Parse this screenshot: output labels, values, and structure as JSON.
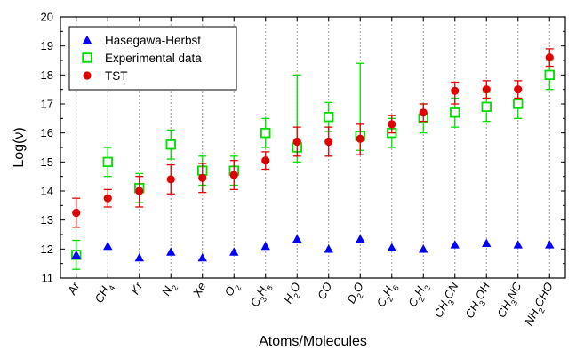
{
  "chart_data": {
    "type": "scatter",
    "xlabel": "Atoms/Molecules",
    "ylabel": "Log(ν)",
    "ylim": [
      11,
      20
    ],
    "yticks": [
      11,
      12,
      13,
      14,
      15,
      16,
      17,
      18,
      19,
      20
    ],
    "grid": "vertical dotted lines at each category",
    "legend_position": "top-left",
    "categories": [
      {
        "base": "Ar",
        "parts": [
          [
            "Ar",
            "n"
          ]
        ]
      },
      {
        "base": "CH4",
        "parts": [
          [
            "CH",
            "n"
          ],
          [
            "4",
            "sub"
          ]
        ]
      },
      {
        "base": "Kr",
        "parts": [
          [
            "Kr",
            "n"
          ]
        ]
      },
      {
        "base": "N2",
        "parts": [
          [
            "N",
            "n"
          ],
          [
            "2",
            "sub"
          ]
        ]
      },
      {
        "base": "Xe",
        "parts": [
          [
            "Xe",
            "n"
          ]
        ]
      },
      {
        "base": "O2",
        "parts": [
          [
            "O",
            "n"
          ],
          [
            "2",
            "sub"
          ]
        ]
      },
      {
        "base": "C3H8",
        "parts": [
          [
            "C",
            "n"
          ],
          [
            "3",
            "sub"
          ],
          [
            "H",
            "n"
          ],
          [
            "8",
            "sub"
          ]
        ]
      },
      {
        "base": "H2O",
        "parts": [
          [
            "H",
            "n"
          ],
          [
            "2",
            "sub"
          ],
          [
            "O",
            "n"
          ]
        ]
      },
      {
        "base": "CO",
        "parts": [
          [
            "CO",
            "n"
          ]
        ]
      },
      {
        "base": "D2O",
        "parts": [
          [
            "D",
            "n"
          ],
          [
            "2",
            "sub"
          ],
          [
            "O",
            "n"
          ]
        ]
      },
      {
        "base": "C2H6",
        "parts": [
          [
            "C",
            "n"
          ],
          [
            "2",
            "sub"
          ],
          [
            "H",
            "n"
          ],
          [
            "6",
            "sub"
          ]
        ]
      },
      {
        "base": "C2H2",
        "parts": [
          [
            "C",
            "n"
          ],
          [
            "2",
            "sub"
          ],
          [
            "H",
            "n"
          ],
          [
            "2",
            "sub"
          ]
        ]
      },
      {
        "base": "CH3CN",
        "parts": [
          [
            "CH",
            "n"
          ],
          [
            "3",
            "sub"
          ],
          [
            "CN",
            "n"
          ]
        ]
      },
      {
        "base": "CH3OH",
        "parts": [
          [
            "CH",
            "n"
          ],
          [
            "3",
            "sub"
          ],
          [
            "OH",
            "n"
          ]
        ]
      },
      {
        "base": "CH3NC",
        "parts": [
          [
            "CH",
            "n"
          ],
          [
            "3",
            "sub"
          ],
          [
            "NC",
            "n"
          ]
        ]
      },
      {
        "base": "NH2CHO",
        "parts": [
          [
            "NH",
            "n"
          ],
          [
            "2",
            "sub"
          ],
          [
            "CHO",
            "n"
          ]
        ]
      }
    ],
    "series": [
      {
        "name": "Hasegawa-Herbst",
        "marker": "triangle",
        "color": "#0000ff",
        "values": [
          11.8,
          12.1,
          11.7,
          11.9,
          11.7,
          11.9,
          12.1,
          12.35,
          12.0,
          12.35,
          12.05,
          12.0,
          12.15,
          12.2,
          12.15,
          12.15
        ]
      },
      {
        "name": "Experimental data",
        "marker": "open-square",
        "color": "#00dd00",
        "values": [
          11.8,
          15.0,
          14.1,
          15.6,
          14.7,
          14.7,
          16.0,
          15.5,
          16.55,
          15.9,
          16.0,
          16.5,
          16.7,
          16.9,
          17.0,
          18.0
        ],
        "err_low": [
          11.3,
          14.5,
          13.6,
          15.1,
          14.2,
          14.2,
          15.5,
          15.0,
          16.05,
          15.4,
          15.5,
          16.0,
          16.2,
          16.4,
          16.5,
          17.5
        ],
        "err_high": [
          12.3,
          15.5,
          14.6,
          16.1,
          15.2,
          15.2,
          16.5,
          18.0,
          17.05,
          18.4,
          16.5,
          17.0,
          17.2,
          17.4,
          17.5,
          18.5
        ]
      },
      {
        "name": "TST",
        "marker": "filled-circle",
        "color": "#e00000",
        "values": [
          13.25,
          13.75,
          14.0,
          14.4,
          14.45,
          14.55,
          15.05,
          15.7,
          15.7,
          15.8,
          16.3,
          16.7,
          17.45,
          17.5,
          17.5,
          18.6
        ],
        "err_low": [
          12.75,
          13.45,
          13.45,
          13.9,
          13.95,
          14.05,
          14.75,
          15.2,
          15.2,
          15.25,
          16.0,
          16.4,
          17.0,
          17.2,
          17.2,
          18.3
        ],
        "err_high": [
          13.75,
          14.05,
          14.5,
          14.9,
          14.95,
          15.05,
          15.35,
          16.2,
          16.2,
          16.3,
          16.6,
          17.0,
          17.75,
          17.8,
          17.8,
          18.9
        ]
      }
    ]
  }
}
